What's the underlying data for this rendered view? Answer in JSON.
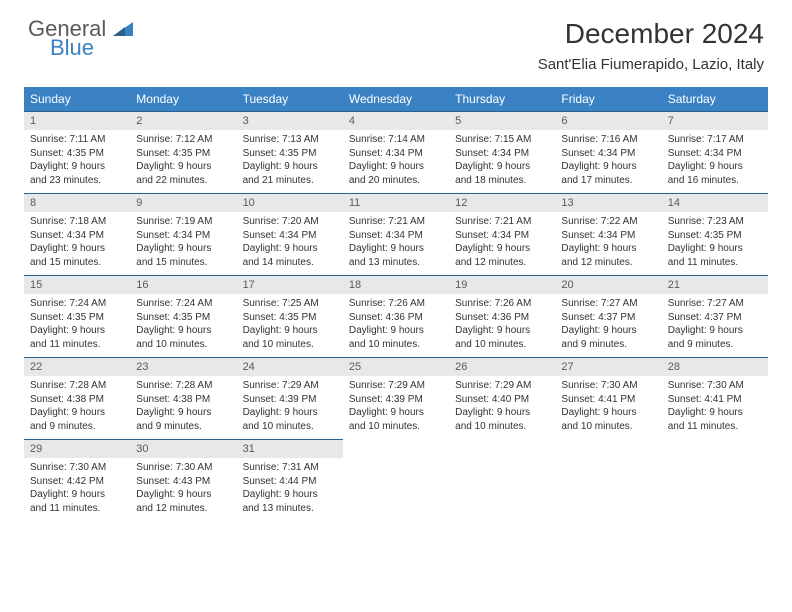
{
  "logo": {
    "line1": "General",
    "line2": "Blue"
  },
  "title": "December 2024",
  "location": "Sant'Elia Fiumerapido, Lazio, Italy",
  "header_bg": "#3b82c4",
  "header_fg": "#ffffff",
  "daynum_bg": "#e8e8e8",
  "border_color": "#2b5f8c",
  "day_labels": [
    "Sunday",
    "Monday",
    "Tuesday",
    "Wednesday",
    "Thursday",
    "Friday",
    "Saturday"
  ],
  "weeks": [
    [
      {
        "n": "1",
        "sr": "7:11 AM",
        "ss": "4:35 PM",
        "dl": "9 hours and 23 minutes."
      },
      {
        "n": "2",
        "sr": "7:12 AM",
        "ss": "4:35 PM",
        "dl": "9 hours and 22 minutes."
      },
      {
        "n": "3",
        "sr": "7:13 AM",
        "ss": "4:35 PM",
        "dl": "9 hours and 21 minutes."
      },
      {
        "n": "4",
        "sr": "7:14 AM",
        "ss": "4:34 PM",
        "dl": "9 hours and 20 minutes."
      },
      {
        "n": "5",
        "sr": "7:15 AM",
        "ss": "4:34 PM",
        "dl": "9 hours and 18 minutes."
      },
      {
        "n": "6",
        "sr": "7:16 AM",
        "ss": "4:34 PM",
        "dl": "9 hours and 17 minutes."
      },
      {
        "n": "7",
        "sr": "7:17 AM",
        "ss": "4:34 PM",
        "dl": "9 hours and 16 minutes."
      }
    ],
    [
      {
        "n": "8",
        "sr": "7:18 AM",
        "ss": "4:34 PM",
        "dl": "9 hours and 15 minutes."
      },
      {
        "n": "9",
        "sr": "7:19 AM",
        "ss": "4:34 PM",
        "dl": "9 hours and 15 minutes."
      },
      {
        "n": "10",
        "sr": "7:20 AM",
        "ss": "4:34 PM",
        "dl": "9 hours and 14 minutes."
      },
      {
        "n": "11",
        "sr": "7:21 AM",
        "ss": "4:34 PM",
        "dl": "9 hours and 13 minutes."
      },
      {
        "n": "12",
        "sr": "7:21 AM",
        "ss": "4:34 PM",
        "dl": "9 hours and 12 minutes."
      },
      {
        "n": "13",
        "sr": "7:22 AM",
        "ss": "4:34 PM",
        "dl": "9 hours and 12 minutes."
      },
      {
        "n": "14",
        "sr": "7:23 AM",
        "ss": "4:35 PM",
        "dl": "9 hours and 11 minutes."
      }
    ],
    [
      {
        "n": "15",
        "sr": "7:24 AM",
        "ss": "4:35 PM",
        "dl": "9 hours and 11 minutes."
      },
      {
        "n": "16",
        "sr": "7:24 AM",
        "ss": "4:35 PM",
        "dl": "9 hours and 10 minutes."
      },
      {
        "n": "17",
        "sr": "7:25 AM",
        "ss": "4:35 PM",
        "dl": "9 hours and 10 minutes."
      },
      {
        "n": "18",
        "sr": "7:26 AM",
        "ss": "4:36 PM",
        "dl": "9 hours and 10 minutes."
      },
      {
        "n": "19",
        "sr": "7:26 AM",
        "ss": "4:36 PM",
        "dl": "9 hours and 10 minutes."
      },
      {
        "n": "20",
        "sr": "7:27 AM",
        "ss": "4:37 PM",
        "dl": "9 hours and 9 minutes."
      },
      {
        "n": "21",
        "sr": "7:27 AM",
        "ss": "4:37 PM",
        "dl": "9 hours and 9 minutes."
      }
    ],
    [
      {
        "n": "22",
        "sr": "7:28 AM",
        "ss": "4:38 PM",
        "dl": "9 hours and 9 minutes."
      },
      {
        "n": "23",
        "sr": "7:28 AM",
        "ss": "4:38 PM",
        "dl": "9 hours and 9 minutes."
      },
      {
        "n": "24",
        "sr": "7:29 AM",
        "ss": "4:39 PM",
        "dl": "9 hours and 10 minutes."
      },
      {
        "n": "25",
        "sr": "7:29 AM",
        "ss": "4:39 PM",
        "dl": "9 hours and 10 minutes."
      },
      {
        "n": "26",
        "sr": "7:29 AM",
        "ss": "4:40 PM",
        "dl": "9 hours and 10 minutes."
      },
      {
        "n": "27",
        "sr": "7:30 AM",
        "ss": "4:41 PM",
        "dl": "9 hours and 10 minutes."
      },
      {
        "n": "28",
        "sr": "7:30 AM",
        "ss": "4:41 PM",
        "dl": "9 hours and 11 minutes."
      }
    ],
    [
      {
        "n": "29",
        "sr": "7:30 AM",
        "ss": "4:42 PM",
        "dl": "9 hours and 11 minutes."
      },
      {
        "n": "30",
        "sr": "7:30 AM",
        "ss": "4:43 PM",
        "dl": "9 hours and 12 minutes."
      },
      {
        "n": "31",
        "sr": "7:31 AM",
        "ss": "4:44 PM",
        "dl": "9 hours and 13 minutes."
      },
      null,
      null,
      null,
      null
    ]
  ],
  "labels": {
    "sunrise": "Sunrise:",
    "sunset": "Sunset:",
    "daylight": "Daylight:"
  }
}
